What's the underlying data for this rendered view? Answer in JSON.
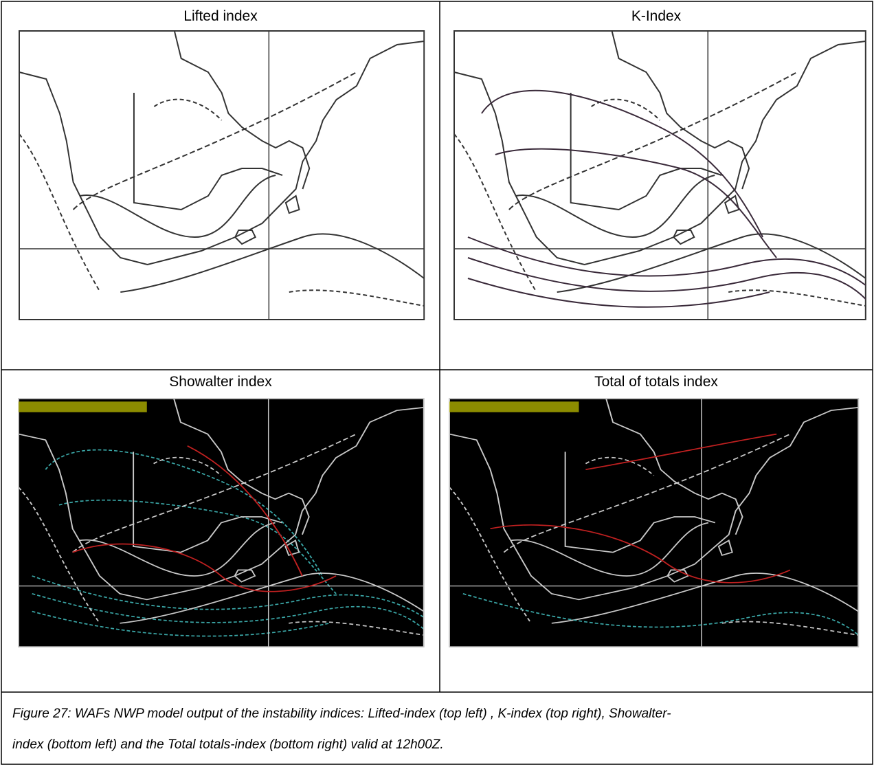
{
  "panels": [
    {
      "title": "Lifted index"
    },
    {
      "title": "K-Index"
    },
    {
      "title": "Showalter index"
    },
    {
      "title": "Total of totals index"
    }
  ],
  "caption_lines": [
    "Figure 27: WAFs NWP model output of the instability indices: Lifted-index (top left) , K-index (top right), Showalter-",
    "index (bottom left) and the Total totals-index (bottom right) valid at 12h00Z."
  ]
}
